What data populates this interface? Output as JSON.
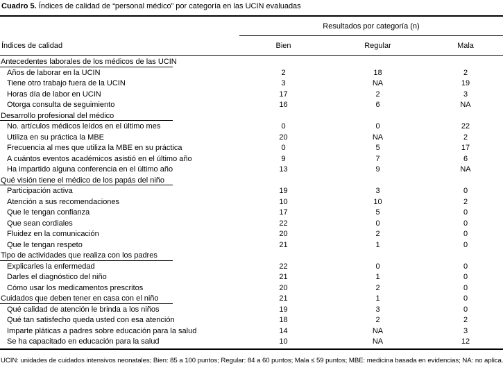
{
  "title": {
    "prefix": "Cuadro 5.",
    "text": "Índices de calidad de “personal médico” por categoría en las UCIN evaluadas"
  },
  "table": {
    "group_header": "Resultados por categoría (n)",
    "index_column_header": "Índices de calidad",
    "columns": [
      "Bien",
      "Regular",
      "Mala"
    ],
    "rows": [
      {
        "type": "section",
        "label": "Antecedentes laborales de los médicos de las UCIN",
        "bien": "",
        "regular": "",
        "mala": ""
      },
      {
        "type": "item",
        "label": "Años de laborar en la UCIN",
        "bien": "2",
        "regular": "18",
        "mala": "2"
      },
      {
        "type": "item",
        "label": "Tiene otro trabajo fuera de la UCIN",
        "bien": "3",
        "regular": "NA",
        "mala": "19"
      },
      {
        "type": "item",
        "label": "Horas día de labor en UCIN",
        "bien": "17",
        "regular": "2",
        "mala": "3"
      },
      {
        "type": "item",
        "label": "Otorga consulta de seguimiento",
        "bien": "16",
        "regular": "6",
        "mala": "NA"
      },
      {
        "type": "section",
        "label": "Desarrollo profesional del médico",
        "bien": "",
        "regular": "",
        "mala": ""
      },
      {
        "type": "item",
        "label": "No. artículos médicos leídos en el último mes",
        "bien": "0",
        "regular": "0",
        "mala": "22"
      },
      {
        "type": "item",
        "label": "Utiliza en su práctica la MBE",
        "bien": "20",
        "regular": "NA",
        "mala": "2"
      },
      {
        "type": "item",
        "label": "Frecuencia al mes que utiliza la MBE en su práctica",
        "bien": "0",
        "regular": "5",
        "mala": "17"
      },
      {
        "type": "item",
        "label": "A cuántos eventos académicos asistió en el último año",
        "bien": "9",
        "regular": "7",
        "mala": "6"
      },
      {
        "type": "item",
        "label": "Ha impartido alguna conferencia en el último año",
        "bien": "13",
        "regular": "9",
        "mala": "NA"
      },
      {
        "type": "section",
        "label": "Qué visión tiene el médico de los papás del niño",
        "bien": "",
        "regular": "",
        "mala": ""
      },
      {
        "type": "item",
        "label": "Participación activa",
        "bien": "19",
        "regular": "3",
        "mala": "0"
      },
      {
        "type": "item",
        "label": "Atención a sus recomendaciones",
        "bien": "10",
        "regular": "10",
        "mala": "2"
      },
      {
        "type": "item",
        "label": "Que le tengan confianza",
        "bien": "17",
        "regular": "5",
        "mala": "0"
      },
      {
        "type": "item",
        "label": "Que sean cordiales",
        "bien": "22",
        "regular": "0",
        "mala": "0"
      },
      {
        "type": "item",
        "label": "Fluidez en la comunicación",
        "bien": "20",
        "regular": "2",
        "mala": "0"
      },
      {
        "type": "item",
        "label": "Que le tengan respeto",
        "bien": "21",
        "regular": "1",
        "mala": "0"
      },
      {
        "type": "section",
        "label": "Tipo de actividades que realiza con los padres",
        "bien": "",
        "regular": "",
        "mala": ""
      },
      {
        "type": "item",
        "label": "Explicarles la enfermedad",
        "bien": "22",
        "regular": "0",
        "mala": "0"
      },
      {
        "type": "item",
        "label": "Darles el diagnóstico del niño",
        "bien": "21",
        "regular": "1",
        "mala": "0"
      },
      {
        "type": "item",
        "label": "Cómo usar los medicamentos prescritos",
        "bien": "20",
        "regular": "2",
        "mala": "0"
      },
      {
        "type": "section-item",
        "label": "Cuidados que deben tener en casa con el niño",
        "bien": "21",
        "regular": "1",
        "mala": "0"
      },
      {
        "type": "item",
        "label": "Qué calidad de atención le brinda a los niños",
        "bien": "19",
        "regular": "3",
        "mala": "0"
      },
      {
        "type": "item",
        "label": "Qué tan satisfecho queda usted con esa atención",
        "bien": "18",
        "regular": "2",
        "mala": "2"
      },
      {
        "type": "item",
        "label": "Imparte pláticas a padres sobre educación para la salud",
        "bien": "14",
        "regular": "NA",
        "mala": "3"
      },
      {
        "type": "item",
        "label": "Se ha capacitado en educación para la salud",
        "bien": "10",
        "regular": "NA",
        "mala": "12"
      }
    ]
  },
  "footnote": "UCIN: unidades de cuidados intensivos neonatales; Bien: 85 a 100 puntos; Regular: 84 a 60 puntos; Mala ≤ 59 puntos; MBE: medicina basada en evidencias; NA: no aplica.",
  "colors": {
    "background": "#ffffff",
    "text": "#000000",
    "rule": "#000000"
  }
}
